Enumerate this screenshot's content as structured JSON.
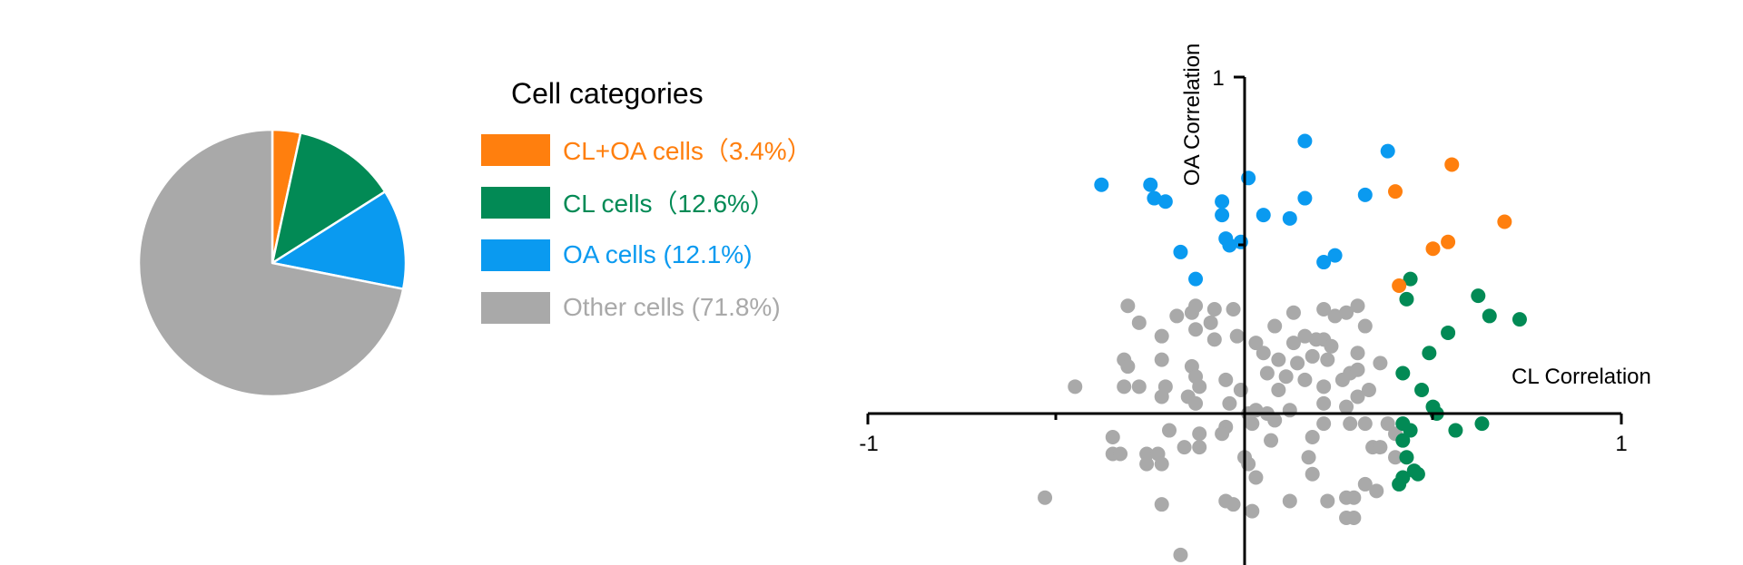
{
  "chart_data": [
    {
      "type": "pie",
      "legend_title": "Cell categories",
      "legend_placement": "right",
      "slices": [
        {
          "label": "CL+OA cells（3.4%）",
          "value": 3.4,
          "color": "#ff7f0e"
        },
        {
          "label": "CL cells（12.6%）",
          "value": 12.6,
          "color": "#028a55"
        },
        {
          "label": "OA cells (12.1%)",
          "value": 12.1,
          "color": "#0a9af0"
        },
        {
          "label": "Other cells (71.8%)",
          "value": 71.8,
          "color": "#a9a9a9"
        }
      ]
    },
    {
      "type": "scatter",
      "xlabel": "CL Correlation",
      "ylabel": "OA Correlation",
      "xlim": [
        -1,
        1
      ],
      "ylim": [
        -0.45,
        1
      ],
      "x_tick_labels": [
        "-1",
        "1"
      ],
      "y_tick_labels": [
        "1"
      ],
      "grid": false,
      "series": [
        {
          "color": "#ff7f0e",
          "points": [
            [
              0.55,
              0.74
            ],
            [
              0.4,
              0.66
            ],
            [
              0.69,
              0.57
            ],
            [
              0.54,
              0.51
            ],
            [
              0.5,
              0.49
            ],
            [
              0.41,
              0.38
            ]
          ]
        },
        {
          "color": "#028a55",
          "points": [
            [
              0.44,
              0.4
            ],
            [
              0.43,
              0.34
            ],
            [
              0.62,
              0.35
            ],
            [
              0.65,
              0.29
            ],
            [
              0.73,
              0.28
            ],
            [
              0.54,
              0.24
            ],
            [
              0.49,
              0.18
            ],
            [
              0.42,
              0.12
            ],
            [
              0.47,
              0.07
            ],
            [
              0.5,
              0.02
            ],
            [
              0.51,
              0.0
            ],
            [
              0.63,
              -0.03
            ],
            [
              0.42,
              -0.03
            ],
            [
              0.44,
              -0.05
            ],
            [
              0.56,
              -0.05
            ],
            [
              0.42,
              -0.08
            ],
            [
              0.43,
              -0.13
            ],
            [
              0.45,
              -0.17
            ],
            [
              0.46,
              -0.18
            ],
            [
              0.42,
              -0.19
            ],
            [
              0.41,
              -0.21
            ]
          ]
        },
        {
          "color": "#0a9af0",
          "points": [
            [
              -0.38,
              0.68
            ],
            [
              -0.25,
              0.68
            ],
            [
              -0.24,
              0.64
            ],
            [
              -0.21,
              0.63
            ],
            [
              -0.06,
              0.63
            ],
            [
              0.01,
              0.7
            ],
            [
              0.16,
              0.81
            ],
            [
              0.16,
              0.64
            ],
            [
              0.38,
              0.78
            ],
            [
              0.32,
              0.65
            ],
            [
              0.05,
              0.59
            ],
            [
              0.12,
              0.58
            ],
            [
              -0.06,
              0.59
            ],
            [
              -0.05,
              0.52
            ],
            [
              -0.04,
              0.5
            ],
            [
              -0.01,
              0.51
            ],
            [
              -0.17,
              0.48
            ],
            [
              0.21,
              0.45
            ],
            [
              0.24,
              0.47
            ],
            [
              -0.13,
              0.4
            ]
          ]
        },
        {
          "color": "#a9a9a9",
          "points": [
            [
              -0.31,
              0.32
            ],
            [
              -0.28,
              0.27
            ],
            [
              -0.18,
              0.29
            ],
            [
              -0.14,
              0.3
            ],
            [
              -0.13,
              0.32
            ],
            [
              -0.08,
              0.31
            ],
            [
              -0.03,
              0.31
            ],
            [
              -0.09,
              0.27
            ],
            [
              -0.13,
              0.25
            ],
            [
              -0.22,
              0.23
            ],
            [
              -0.08,
              0.22
            ],
            [
              0.08,
              0.26
            ],
            [
              0.13,
              0.3
            ],
            [
              0.21,
              0.31
            ],
            [
              0.24,
              0.29
            ],
            [
              0.27,
              0.3
            ],
            [
              0.3,
              0.32
            ],
            [
              0.32,
              0.26
            ],
            [
              -0.02,
              0.23
            ],
            [
              0.03,
              0.21
            ],
            [
              0.05,
              0.18
            ],
            [
              0.09,
              0.16
            ],
            [
              0.13,
              0.21
            ],
            [
              0.16,
              0.23
            ],
            [
              0.19,
              0.22
            ],
            [
              0.21,
              0.22
            ],
            [
              0.23,
              0.2
            ],
            [
              0.18,
              0.17
            ],
            [
              0.14,
              0.15
            ],
            [
              0.22,
              0.16
            ],
            [
              0.3,
              0.18
            ],
            [
              0.36,
              0.15
            ],
            [
              -0.32,
              0.16
            ],
            [
              -0.31,
              0.14
            ],
            [
              -0.22,
              0.16
            ],
            [
              -0.14,
              0.14
            ],
            [
              -0.13,
              0.11
            ],
            [
              -0.21,
              0.08
            ],
            [
              -0.28,
              0.08
            ],
            [
              -0.32,
              0.08
            ],
            [
              -0.45,
              0.08
            ],
            [
              -0.22,
              0.05
            ],
            [
              -0.15,
              0.05
            ],
            [
              -0.12,
              0.08
            ],
            [
              -0.05,
              0.1
            ],
            [
              -0.01,
              0.07
            ],
            [
              0.06,
              0.12
            ],
            [
              0.09,
              0.07
            ],
            [
              0.11,
              0.11
            ],
            [
              0.16,
              0.1
            ],
            [
              0.21,
              0.08
            ],
            [
              0.26,
              0.1
            ],
            [
              0.28,
              0.12
            ],
            [
              0.3,
              0.13
            ],
            [
              -0.13,
              0.03
            ],
            [
              -0.04,
              0.03
            ],
            [
              0.01,
              0.0
            ],
            [
              0.03,
              0.01
            ],
            [
              0.06,
              0.0
            ],
            [
              0.08,
              -0.02
            ],
            [
              0.12,
              0.01
            ],
            [
              0.21,
              0.03
            ],
            [
              0.27,
              0.02
            ],
            [
              0.3,
              0.05
            ],
            [
              0.33,
              0.07
            ],
            [
              -0.05,
              -0.04
            ],
            [
              0.02,
              -0.03
            ],
            [
              -0.12,
              -0.06
            ],
            [
              -0.2,
              -0.05
            ],
            [
              -0.16,
              -0.1
            ],
            [
              -0.12,
              -0.1
            ],
            [
              -0.06,
              -0.06
            ],
            [
              -0.35,
              -0.07
            ],
            [
              -0.35,
              -0.12
            ],
            [
              -0.33,
              -0.12
            ],
            [
              -0.26,
              -0.12
            ],
            [
              -0.23,
              -0.12
            ],
            [
              -0.22,
              -0.15
            ],
            [
              -0.26,
              -0.15
            ],
            [
              0.0,
              -0.13
            ],
            [
              0.01,
              -0.15
            ],
            [
              0.03,
              -0.19
            ],
            [
              0.07,
              -0.08
            ],
            [
              0.18,
              -0.07
            ],
            [
              0.21,
              -0.03
            ],
            [
              0.28,
              -0.03
            ],
            [
              0.32,
              -0.03
            ],
            [
              0.34,
              -0.1
            ],
            [
              0.36,
              -0.1
            ],
            [
              0.38,
              -0.03
            ],
            [
              0.4,
              -0.06
            ],
            [
              0.4,
              -0.13
            ],
            [
              0.17,
              -0.13
            ],
            [
              0.18,
              -0.18
            ],
            [
              0.27,
              -0.25
            ],
            [
              0.29,
              -0.25
            ],
            [
              0.32,
              -0.21
            ],
            [
              0.35,
              -0.23
            ],
            [
              -0.53,
              -0.25
            ],
            [
              -0.22,
              -0.27
            ],
            [
              -0.05,
              -0.26
            ],
            [
              -0.03,
              -0.27
            ],
            [
              0.02,
              -0.29
            ],
            [
              0.12,
              -0.26
            ],
            [
              0.22,
              -0.26
            ],
            [
              0.27,
              -0.31
            ],
            [
              0.29,
              -0.31
            ],
            [
              -0.17,
              -0.42
            ]
          ]
        }
      ]
    }
  ]
}
